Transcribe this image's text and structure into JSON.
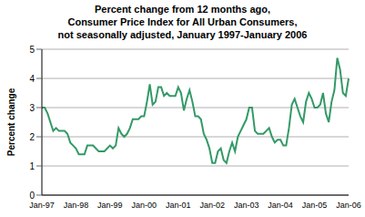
{
  "chart_data": {
    "type": "line",
    "title": "Percent change from 12 months ago,\nConsumer Price Index for All Urban Consumers,\nnot seasonally adjusted, January 1997-January 2006",
    "y_label": "Percent change",
    "categories": [
      "Jan-97",
      null,
      null,
      null,
      null,
      null,
      null,
      null,
      null,
      null,
      null,
      null,
      "Jan-98",
      null,
      null,
      null,
      null,
      null,
      null,
      null,
      null,
      null,
      null,
      null,
      "Jan-99",
      null,
      null,
      null,
      null,
      null,
      null,
      null,
      null,
      null,
      null,
      null,
      "Jan-00",
      null,
      null,
      null,
      null,
      null,
      null,
      null,
      null,
      null,
      null,
      null,
      "Jan-01",
      null,
      null,
      null,
      null,
      null,
      null,
      null,
      null,
      null,
      null,
      null,
      "Jan-02",
      null,
      null,
      null,
      null,
      null,
      null,
      null,
      null,
      null,
      null,
      null,
      "Jan-03",
      null,
      null,
      null,
      null,
      null,
      null,
      null,
      null,
      null,
      null,
      null,
      "Jan-04",
      null,
      null,
      null,
      null,
      null,
      null,
      null,
      null,
      null,
      null,
      null,
      "Jan-05",
      null,
      null,
      null,
      null,
      null,
      null,
      null,
      null,
      null,
      null,
      null,
      "Jan-06"
    ],
    "values": [
      3.0,
      3.0,
      2.8,
      2.5,
      2.2,
      2.3,
      2.2,
      2.2,
      2.2,
      2.1,
      1.8,
      1.7,
      1.6,
      1.4,
      1.4,
      1.4,
      1.7,
      1.7,
      1.7,
      1.6,
      1.5,
      1.5,
      1.5,
      1.6,
      1.7,
      1.6,
      1.7,
      2.3,
      2.1,
      2.0,
      2.1,
      2.3,
      2.6,
      2.6,
      2.6,
      2.7,
      2.7,
      3.2,
      3.8,
      3.1,
      3.2,
      3.7,
      3.7,
      3.4,
      3.5,
      3.4,
      3.4,
      3.4,
      3.7,
      3.5,
      2.9,
      3.3,
      3.6,
      3.2,
      2.7,
      2.7,
      2.6,
      2.1,
      1.9,
      1.6,
      1.1,
      1.1,
      1.5,
      1.6,
      1.2,
      1.1,
      1.5,
      1.8,
      1.5,
      2.0,
      2.2,
      2.4,
      2.6,
      3.0,
      3.0,
      2.2,
      2.1,
      2.1,
      2.1,
      2.2,
      2.3,
      2.0,
      1.8,
      1.9,
      1.9,
      1.7,
      1.7,
      2.3,
      3.1,
      3.3,
      3.0,
      2.7,
      2.5,
      3.2,
      3.5,
      3.3,
      3.0,
      3.0,
      3.1,
      3.5,
      2.8,
      2.5,
      3.2,
      3.6,
      4.7,
      4.3,
      3.5,
      3.4,
      4.0
    ],
    "color": "#339966",
    "ylim": [
      0,
      5
    ],
    "yticks": [
      0,
      1,
      2,
      3,
      4,
      5
    ],
    "grid": true
  }
}
